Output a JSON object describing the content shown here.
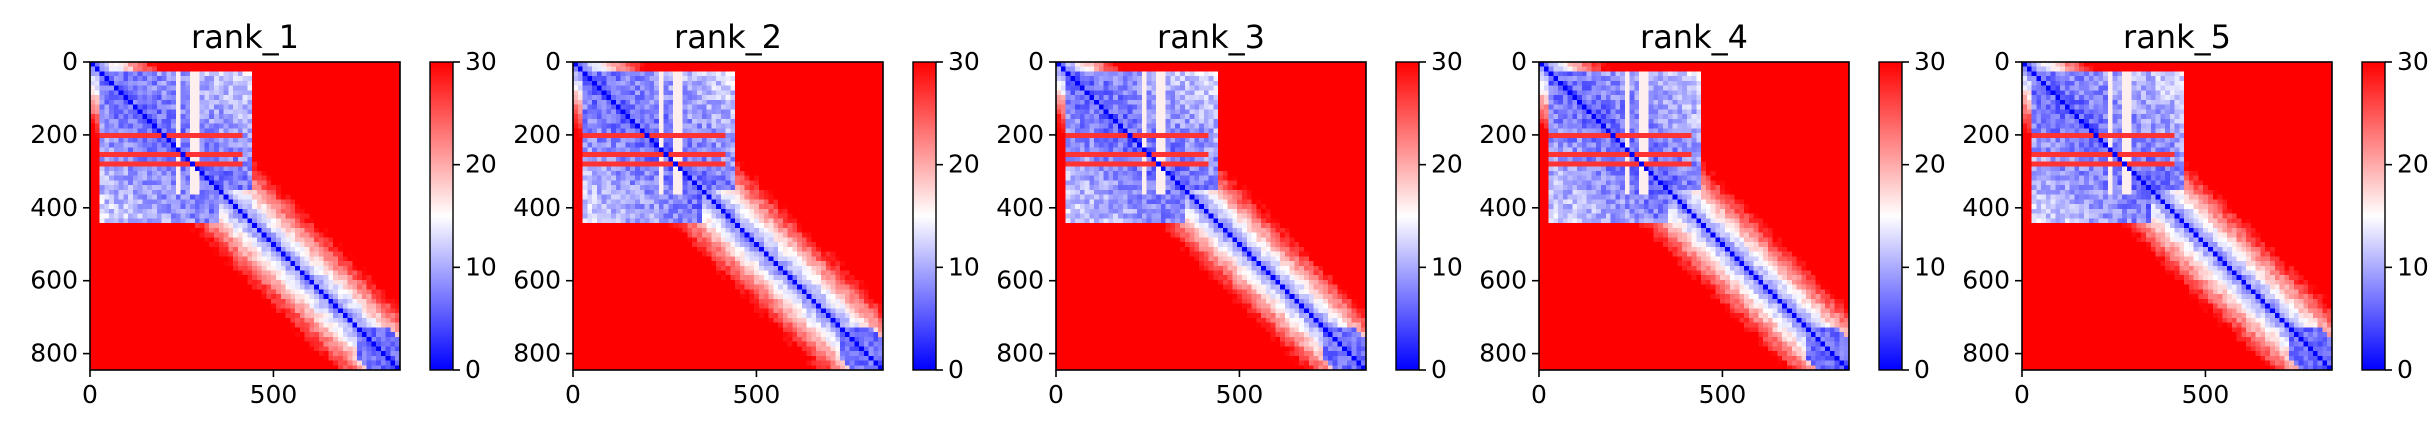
{
  "chart_data": [
    {
      "type": "heatmap",
      "title": "rank_1",
      "x_ticks": [
        0,
        500
      ],
      "y_ticks": [
        0,
        200,
        400,
        600,
        800
      ],
      "xlim": [
        0,
        845
      ],
      "ylim": [
        845,
        0
      ],
      "colorbar": {
        "min": 0,
        "max": 30,
        "ticks": [
          0,
          10,
          20,
          30
        ],
        "colors": [
          "#0000ff",
          "#ffffff",
          "#ff0000"
        ]
      },
      "features": {
        "blue_block_start": 30,
        "blue_block_end": 355,
        "band_width": 90,
        "red_stripes": [
          205,
          255,
          275
        ],
        "vertical_gaps": [
          240,
          285
        ]
      }
    },
    {
      "type": "heatmap",
      "title": "rank_2",
      "x_ticks": [
        0,
        500
      ],
      "y_ticks": [
        0,
        200,
        400,
        600,
        800
      ],
      "xlim": [
        0,
        845
      ],
      "ylim": [
        845,
        0
      ],
      "colorbar": {
        "min": 0,
        "max": 30,
        "ticks": [
          0,
          10,
          20,
          30
        ],
        "colors": [
          "#0000ff",
          "#ffffff",
          "#ff0000"
        ]
      },
      "features": {
        "blue_block_start": 30,
        "blue_block_end": 355,
        "band_width": 92,
        "red_stripes": [
          205,
          255,
          275
        ],
        "vertical_gaps": [
          240,
          285
        ]
      }
    },
    {
      "type": "heatmap",
      "title": "rank_3",
      "x_ticks": [
        0,
        500
      ],
      "y_ticks": [
        0,
        200,
        400,
        600,
        800
      ],
      "xlim": [
        0,
        845
      ],
      "ylim": [
        845,
        0
      ],
      "colorbar": {
        "min": 0,
        "max": 30,
        "ticks": [
          0,
          10,
          20,
          30
        ],
        "colors": [
          "#0000ff",
          "#ffffff",
          "#ff0000"
        ]
      },
      "features": {
        "blue_block_start": 30,
        "blue_block_end": 350,
        "band_width": 85,
        "red_stripes": [
          205,
          255,
          275
        ],
        "vertical_gaps": [
          240,
          285
        ]
      }
    },
    {
      "type": "heatmap",
      "title": "rank_4",
      "x_ticks": [
        0,
        500
      ],
      "y_ticks": [
        0,
        200,
        400,
        600,
        800
      ],
      "xlim": [
        0,
        845
      ],
      "ylim": [
        845,
        0
      ],
      "colorbar": {
        "min": 0,
        "max": 30,
        "ticks": [
          0,
          10,
          20,
          30
        ],
        "colors": [
          "#0000ff",
          "#ffffff",
          "#ff0000"
        ]
      },
      "features": {
        "blue_block_start": 30,
        "blue_block_end": 355,
        "band_width": 88,
        "red_stripes": [
          205,
          255,
          275
        ],
        "vertical_gaps": [
          240,
          285
        ]
      }
    },
    {
      "type": "heatmap",
      "title": "rank_5",
      "x_ticks": [
        0,
        500
      ],
      "y_ticks": [
        0,
        200,
        400,
        600,
        800
      ],
      "xlim": [
        0,
        845
      ],
      "ylim": [
        845,
        0
      ],
      "colorbar": {
        "min": 0,
        "max": 30,
        "ticks": [
          0,
          10,
          20,
          30
        ],
        "colors": [
          "#0000ff",
          "#ffffff",
          "#ff0000"
        ]
      },
      "features": {
        "blue_block_start": 30,
        "blue_block_end": 355,
        "band_width": 90,
        "red_stripes": [
          205,
          255,
          275
        ],
        "vertical_gaps": [
          240,
          285
        ]
      }
    }
  ]
}
